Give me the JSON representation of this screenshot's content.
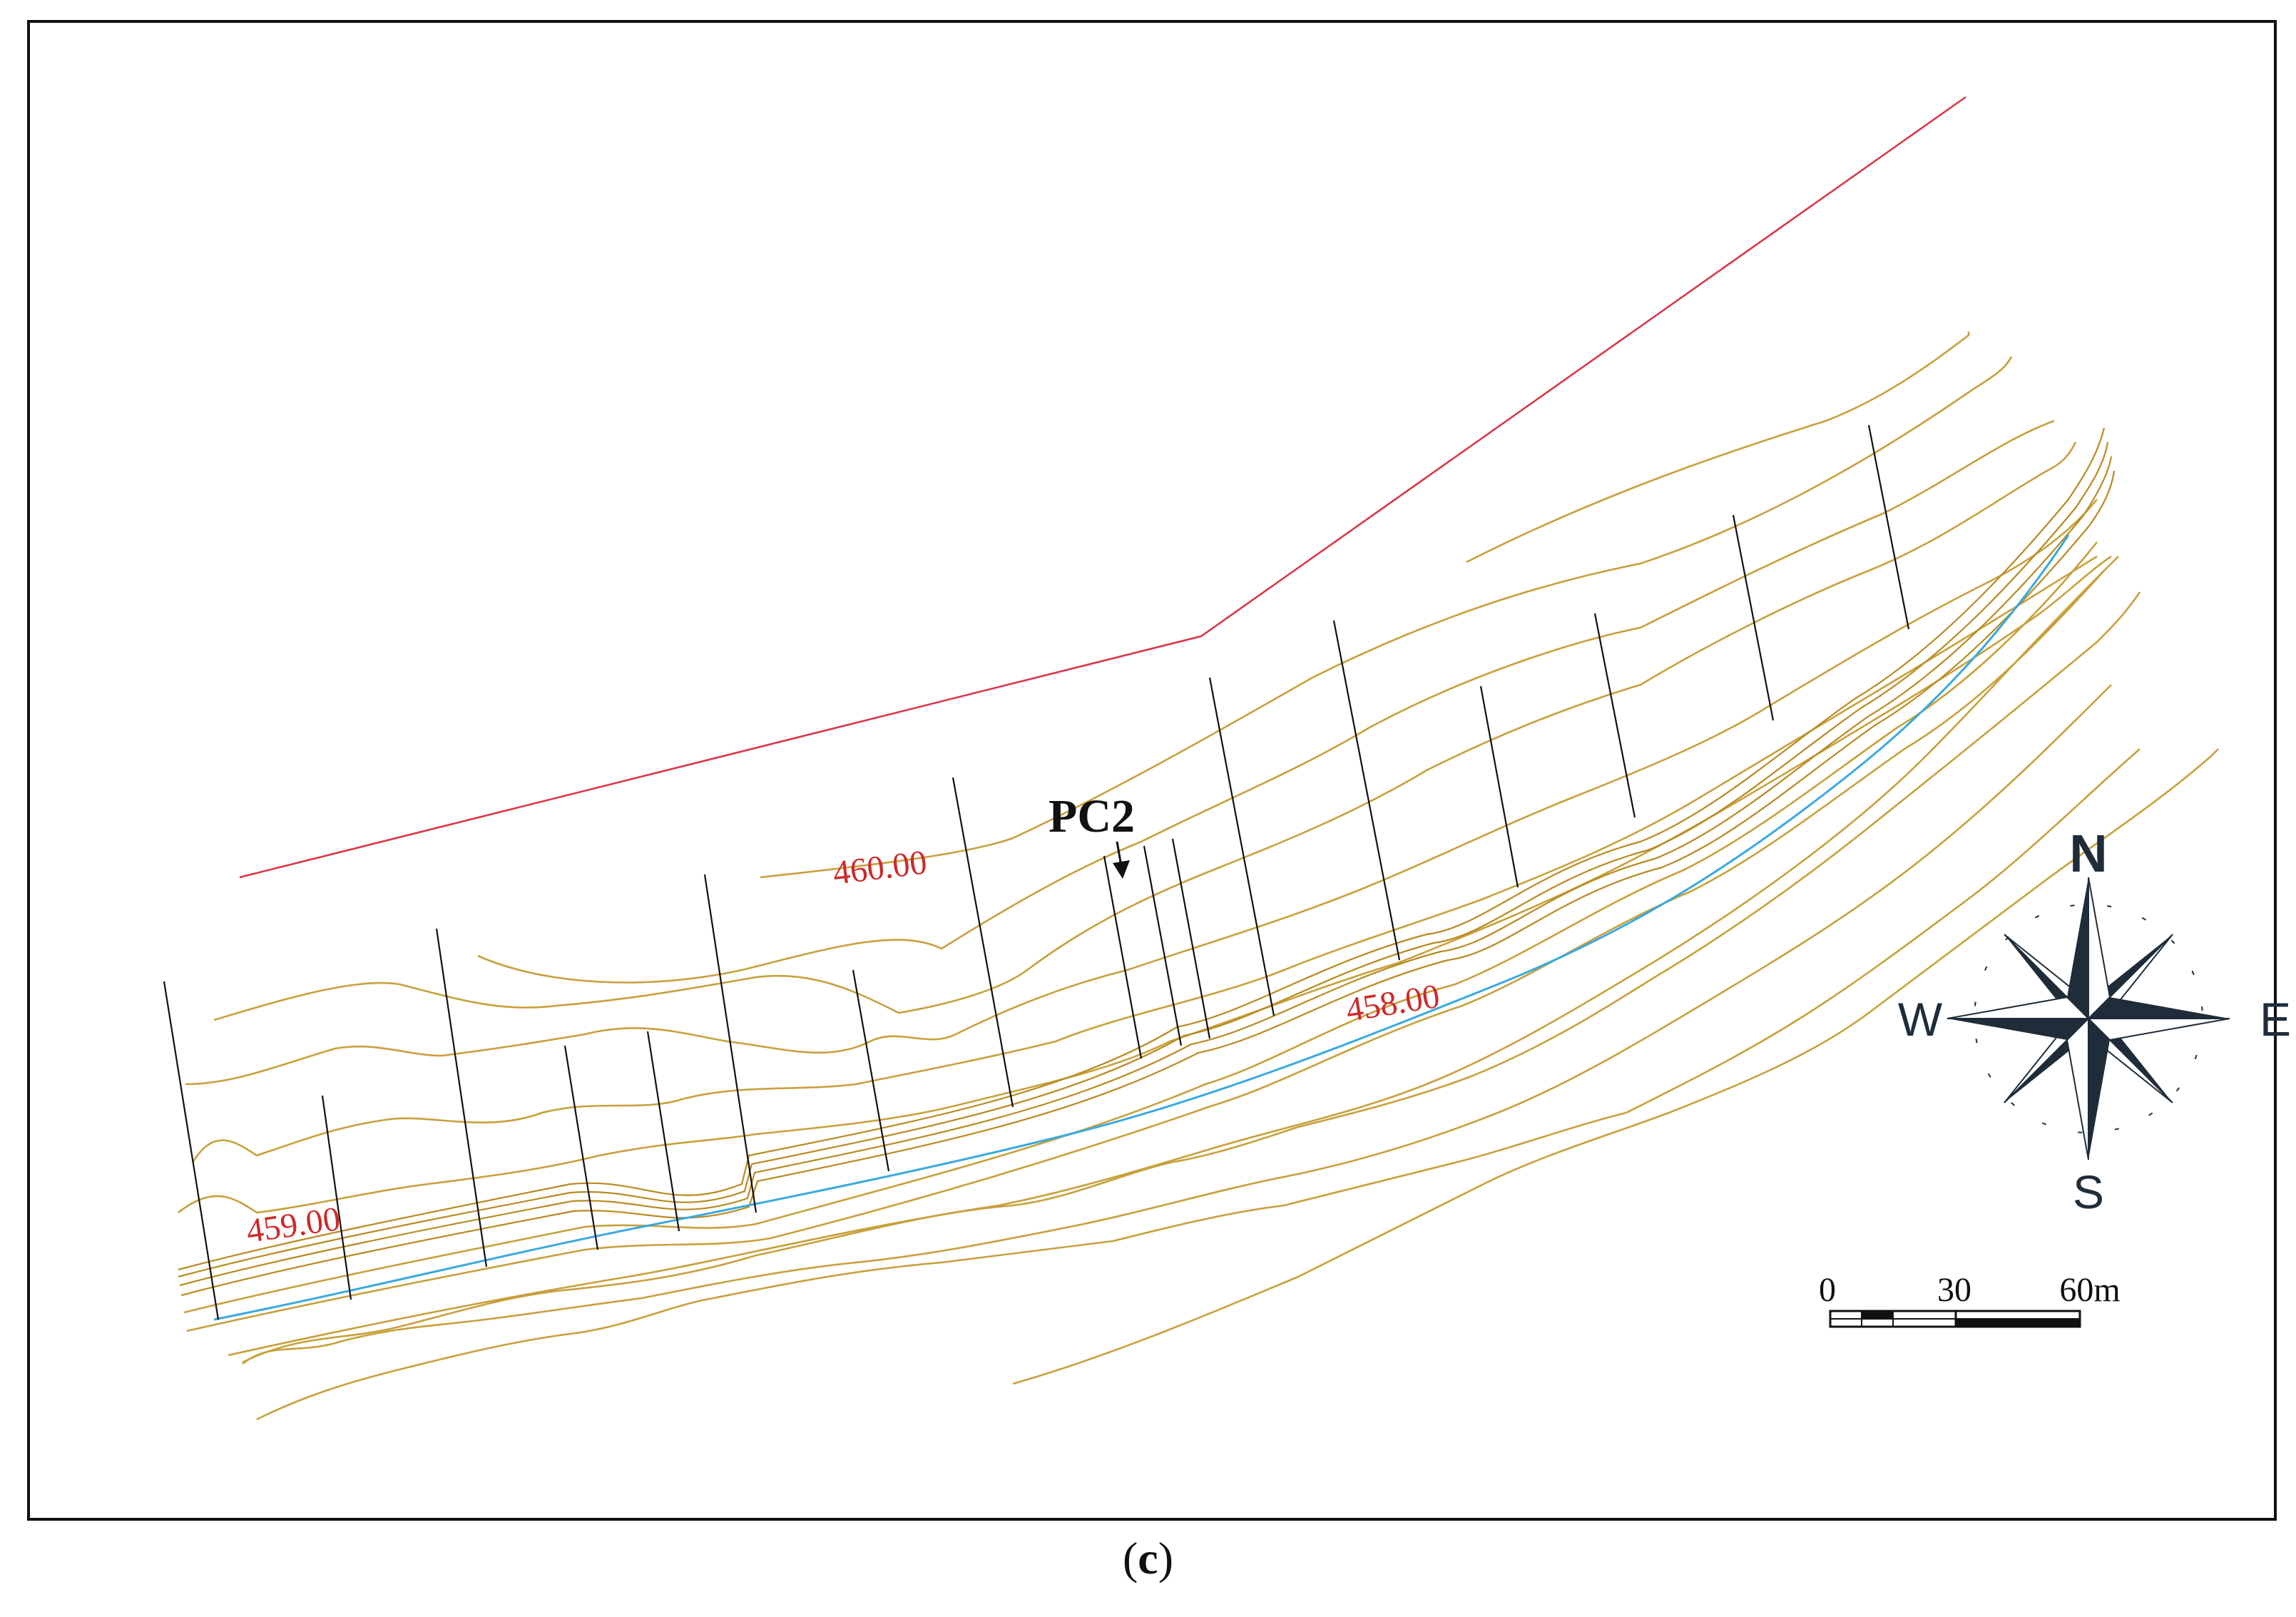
{
  "contour_labels": {
    "upper": "460.00",
    "middle": "458.00",
    "lower": "459.00"
  },
  "section_marker": "PC2",
  "compass": {
    "north": "N",
    "south": "S",
    "east": "E",
    "west": "W"
  },
  "scale_bar": {
    "ticks": [
      "0",
      "30",
      "60m"
    ]
  },
  "caption": {
    "open": "(",
    "letter": "c",
    "close": ")"
  },
  "colors": {
    "contour": "#c8a03c",
    "boundary": "#d8394a",
    "river": "#3aa9df",
    "label": "#cc2a2a",
    "compass": "#1f2d3a"
  }
}
